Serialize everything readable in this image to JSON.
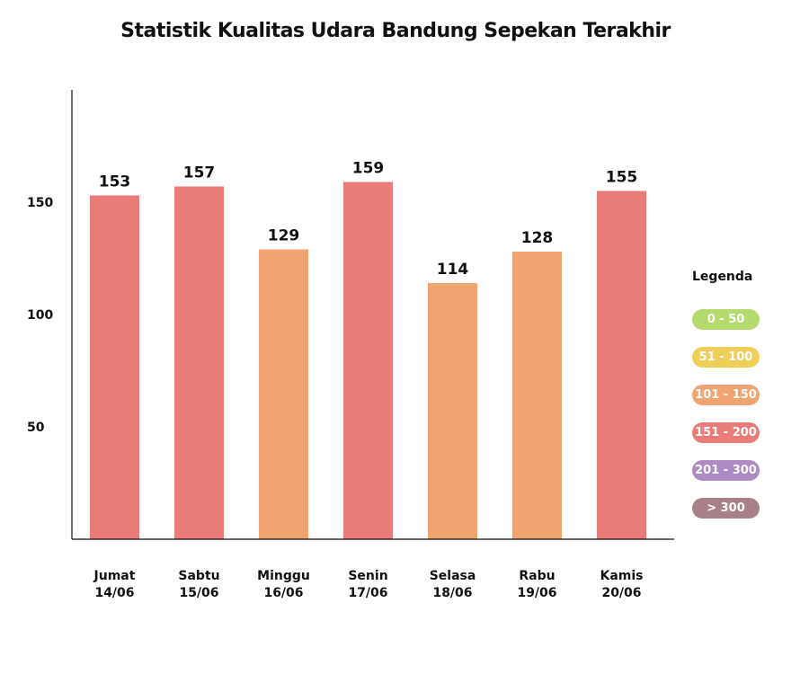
{
  "chart_data": {
    "type": "bar",
    "title": "Statistik Kualitas Udara Bandung Sepekan Terakhir",
    "categories": [
      {
        "day": "Jumat",
        "date": "14/06"
      },
      {
        "day": "Sabtu",
        "date": "15/06"
      },
      {
        "day": "Minggu",
        "date": "16/06"
      },
      {
        "day": "Senin",
        "date": "17/06"
      },
      {
        "day": "Selasa",
        "date": "18/06"
      },
      {
        "day": "Rabu",
        "date": "19/06"
      },
      {
        "day": "Kamis",
        "date": "20/06"
      }
    ],
    "values": [
      153,
      157,
      129,
      159,
      114,
      128,
      155
    ],
    "data_labels": [
      "153",
      "157",
      "129",
      "159",
      "114",
      "128",
      "155"
    ],
    "bar_colors": [
      "#e97b78",
      "#e97b78",
      "#efa471",
      "#e97b78",
      "#efa471",
      "#efa471",
      "#e97b78"
    ],
    "yticks": [
      "150",
      "100",
      "50"
    ],
    "ytick_values": [
      150,
      100,
      50
    ],
    "ylim": [
      0,
      200
    ],
    "grid": false,
    "legend_position": "right"
  },
  "legend": {
    "title": "Legenda",
    "items": [
      {
        "label": "0 - 50",
        "color": "#b4d96d"
      },
      {
        "label": "51 - 100",
        "color": "#eecf5a"
      },
      {
        "label": "101 - 150",
        "color": "#efa471"
      },
      {
        "label": "151 - 200",
        "color": "#e97b78"
      },
      {
        "label": "201 - 300",
        "color": "#ad8ac4"
      },
      {
        "label": "> 300",
        "color": "#a88087"
      }
    ]
  }
}
